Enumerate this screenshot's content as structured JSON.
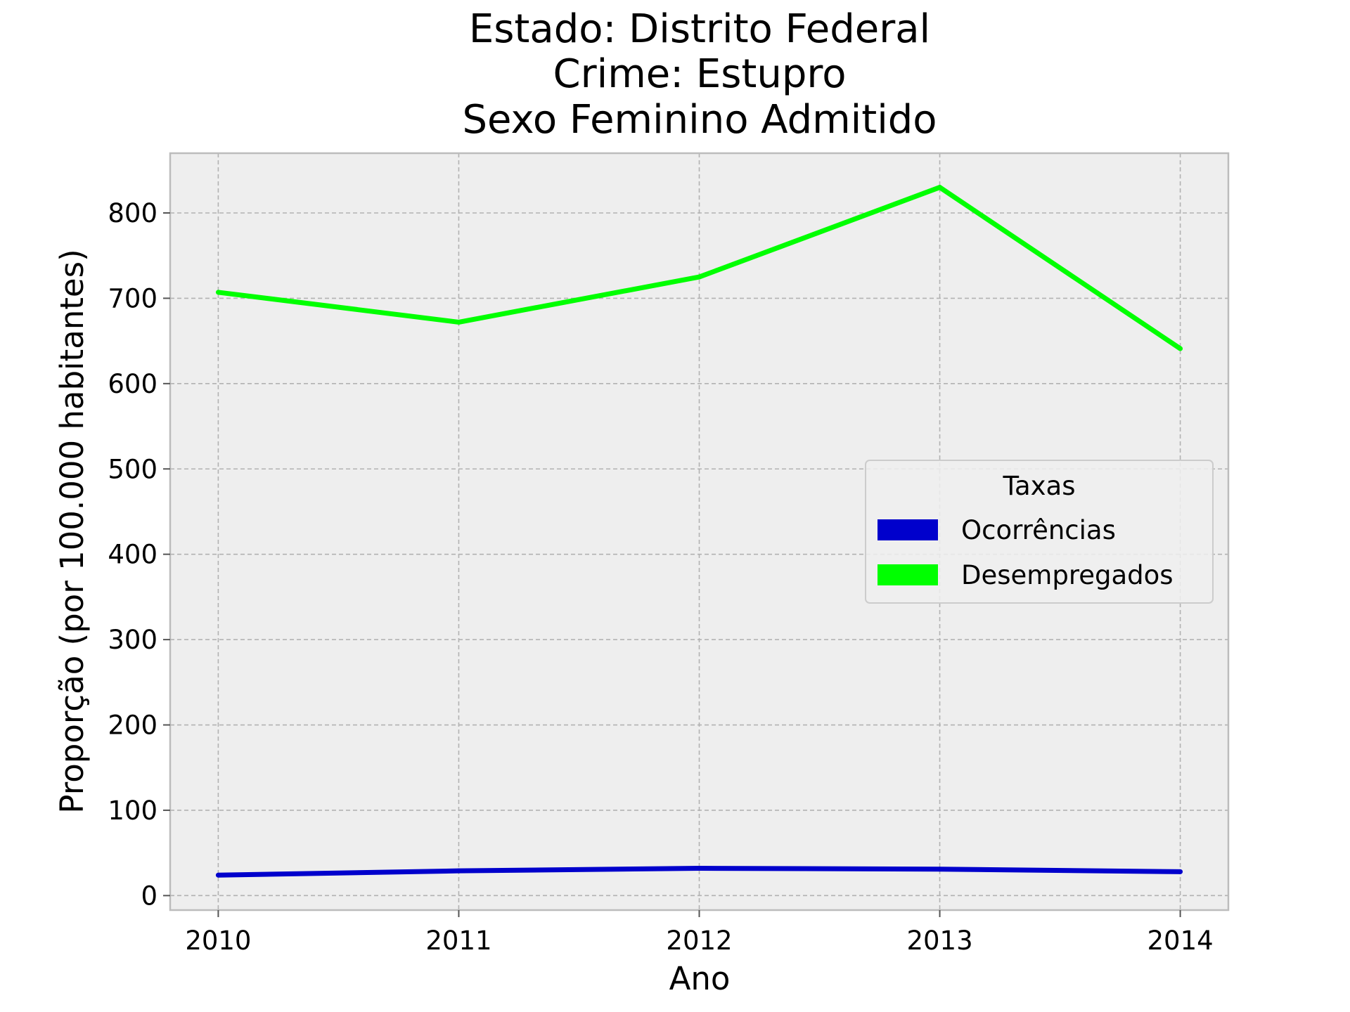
{
  "chart_data": {
    "type": "line",
    "title": [
      "Estado: Distrito Federal",
      "Crime: Estupro",
      "Sexo  Feminino   Admitido"
    ],
    "xlabel": "Ano",
    "ylabel": "Proporção (por 100.000 habitantes)",
    "x": [
      2010,
      2011,
      2012,
      2013,
      2014
    ],
    "xticks": [
      "2010",
      "2011",
      "2012",
      "2013",
      "2014"
    ],
    "yticks": [
      "0",
      "100",
      "200",
      "300",
      "400",
      "500",
      "600",
      "700",
      "800"
    ],
    "ytick_values": [
      0,
      100,
      200,
      300,
      400,
      500,
      600,
      700,
      800
    ],
    "xlim": [
      2009.8,
      2014.2
    ],
    "ylim": [
      -17,
      870
    ],
    "grid": true,
    "legend": {
      "title": "Taxas",
      "placement": "center-right"
    },
    "series": [
      {
        "name": "Ocorrências",
        "color": "#0000cc",
        "values": [
          24,
          29,
          32,
          31,
          28
        ]
      },
      {
        "name": "Desempregados",
        "color": "#00ff00",
        "values": [
          707,
          672,
          725,
          830,
          641
        ]
      }
    ]
  }
}
